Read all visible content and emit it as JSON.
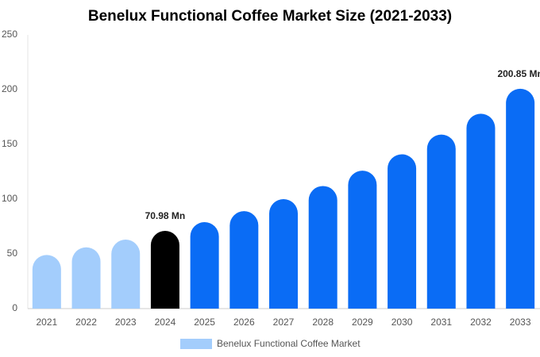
{
  "chart_data": {
    "type": "bar",
    "title": "Benelux Functional Coffee Market Size (2021-2033)",
    "categories": [
      "2021",
      "2022",
      "2023",
      "2024",
      "2025",
      "2026",
      "2027",
      "2028",
      "2029",
      "2030",
      "2031",
      "2032",
      "2033"
    ],
    "series": [
      {
        "name": "Benelux Functional Coffee Market",
        "color": "#a3cdfc",
        "values": [
          49,
          56,
          63,
          70.98,
          79,
          89,
          100,
          112,
          126,
          141,
          159,
          178,
          200.85
        ],
        "value_labels": [
          null,
          null,
          null,
          "70.98 Mn",
          null,
          null,
          null,
          null,
          null,
          null,
          null,
          null,
          "200.85 Mn"
        ],
        "bar_colors": [
          "#a3cdfc",
          "#a3cdfc",
          "#a3cdfc",
          "#000000",
          "#0a6cf5",
          "#0a6cf5",
          "#0a6cf5",
          "#0a6cf5",
          "#0a6cf5",
          "#0a6cf5",
          "#0a6cf5",
          "#0a6cf5",
          "#0a6cf5"
        ]
      }
    ],
    "ylim": [
      0,
      250
    ],
    "yticks": [
      0,
      50,
      100,
      150,
      200,
      250
    ],
    "grid": false,
    "legend": "bottom"
  }
}
